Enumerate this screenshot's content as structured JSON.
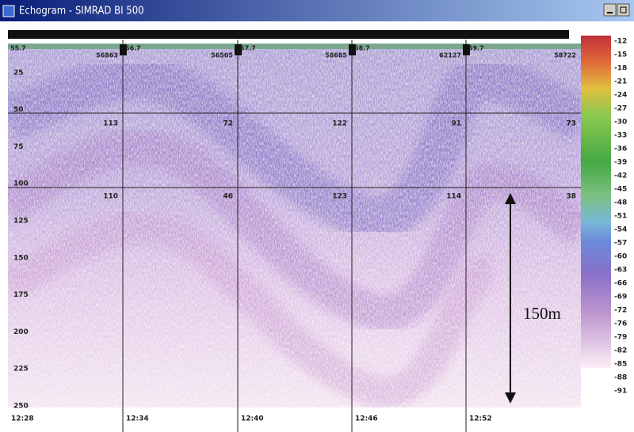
{
  "window": {
    "title": "Echogram - SIMRAD BI 500"
  },
  "echogram": {
    "surface_labels": [
      "55.7",
      "56.7",
      "57.7",
      "58.7",
      "59.7"
    ],
    "top_values": [
      "56863",
      "56505",
      "58685",
      "62127",
      "58722"
    ],
    "cell_values": [
      [
        "113",
        "72",
        "122",
        "91",
        "73"
      ],
      [
        "110",
        "46",
        "123",
        "114",
        "38"
      ]
    ],
    "depth_labels": [
      "25",
      "50",
      "75",
      "100",
      "125",
      "150",
      "175",
      "200",
      "225",
      "250"
    ],
    "time_labels": [
      "12:28",
      "12:34",
      "12:40",
      "12:46",
      "12:52"
    ],
    "annotation": "150m"
  },
  "color_scale": {
    "labels": [
      "-12",
      "-15",
      "-18",
      "-21",
      "-24",
      "-27",
      "-30",
      "-33",
      "-36",
      "-39",
      "-42",
      "-45",
      "-48",
      "-51",
      "-54",
      "-57",
      "-60",
      "-63",
      "-66",
      "-69",
      "-72",
      "-76",
      "-79",
      "-82",
      "-85",
      "-88",
      "-91"
    ]
  }
}
